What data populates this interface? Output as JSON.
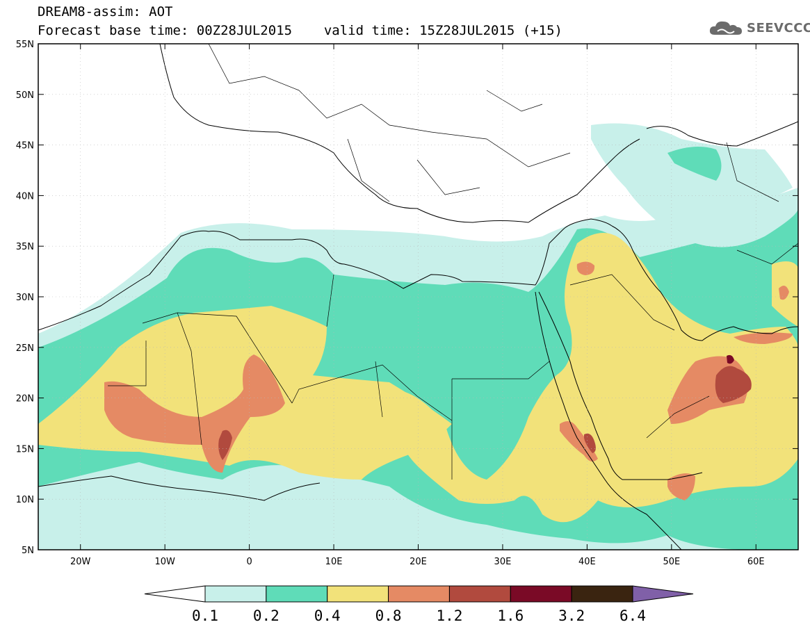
{
  "header": {
    "line1": "DREAM8-assim: AOT",
    "base_time": "Forecast base time: 00Z28JUL2015",
    "valid_time": "valid time: 15Z28JUL2015 (+15)"
  },
  "logo": {
    "text": "SEEVCCC",
    "icon": "cloud-icon"
  },
  "map": {
    "variable": "AOT",
    "lon_range": [
      -25,
      65
    ],
    "lat_range": [
      5,
      55
    ],
    "lat_ticks": [
      "5N",
      "10N",
      "15N",
      "20N",
      "25N",
      "30N",
      "35N",
      "40N",
      "45N",
      "50N",
      "55N"
    ],
    "lon_ticks": [
      "20W",
      "10W",
      "0",
      "10E",
      "20E",
      "30E",
      "40E",
      "50E",
      "60E"
    ],
    "lat_values": [
      5,
      10,
      15,
      20,
      25,
      30,
      35,
      40,
      45,
      50,
      55
    ],
    "lon_values": [
      -20,
      -10,
      0,
      10,
      20,
      30,
      40,
      50,
      60
    ]
  },
  "colorbar": {
    "labels": [
      "0.1",
      "0.2",
      "0.4",
      "0.8",
      "1.2",
      "1.6",
      "3.2",
      "6.4"
    ],
    "colors": [
      "#ffffff",
      "#c8f0ea",
      "#5fdcb8",
      "#f2e27a",
      "#e58a64",
      "#b14a3e",
      "#7a0a26",
      "#3a2410",
      "#8060a8"
    ]
  }
}
